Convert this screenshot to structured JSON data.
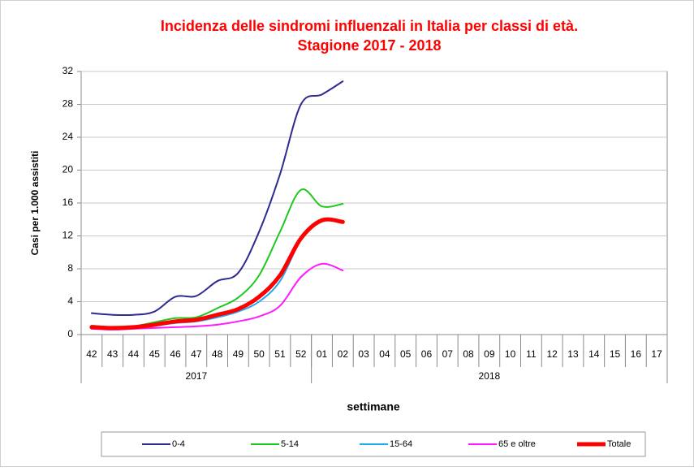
{
  "chart_data": {
    "type": "line",
    "title": "Incidenza delle sindromi influenzali in Italia per classi di età.",
    "subtitle": "Stagione 2017 - 2018",
    "y_label": "Casi per 1.000 assistiti",
    "x_label": "settimane",
    "categories": [
      "42",
      "43",
      "44",
      "45",
      "46",
      "47",
      "48",
      "49",
      "50",
      "51",
      "52",
      "01",
      "02",
      "03",
      "04",
      "05",
      "06",
      "07",
      "08",
      "09",
      "10",
      "11",
      "12",
      "13",
      "14",
      "15",
      "16",
      "17"
    ],
    "x_groups": [
      "2017",
      "2018"
    ],
    "ylim": [
      0,
      32
    ],
    "yticks": [
      0,
      4,
      8,
      12,
      16,
      20,
      24,
      28,
      32
    ],
    "grid": true,
    "legend": "bottom",
    "series": [
      {
        "name": "0-4",
        "color": "#2e2a8f",
        "width": 2,
        "values": [
          2.6,
          2.4,
          2.4,
          2.8,
          4.6,
          4.7,
          6.5,
          7.5,
          12.5,
          19.5,
          28.0,
          29.2,
          30.8,
          null,
          null,
          null,
          null,
          null,
          null,
          null,
          null,
          null,
          null,
          null,
          null,
          null,
          null,
          null
        ]
      },
      {
        "name": "5-14",
        "color": "#1ec81e",
        "width": 2,
        "values": [
          1.1,
          0.9,
          1.0,
          1.5,
          2.0,
          2.1,
          3.2,
          4.5,
          7.2,
          12.5,
          17.6,
          15.6,
          15.9,
          null,
          null,
          null,
          null,
          null,
          null,
          null,
          null,
          null,
          null,
          null,
          null,
          null,
          null,
          null
        ]
      },
      {
        "name": "15-64",
        "color": "#1eaaf0",
        "width": 2,
        "values": [
          0.8,
          0.7,
          0.8,
          1.1,
          1.4,
          1.6,
          2.1,
          2.8,
          4.0,
          6.5,
          11.5,
          13.8,
          13.7,
          null,
          null,
          null,
          null,
          null,
          null,
          null,
          null,
          null,
          null,
          null,
          null,
          null,
          null,
          null
        ]
      },
      {
        "name": "65 e oltre",
        "color": "#ff1aff",
        "width": 2,
        "values": [
          0.7,
          0.6,
          0.7,
          0.8,
          0.9,
          1.0,
          1.2,
          1.6,
          2.2,
          3.5,
          7.0,
          8.6,
          7.8,
          null,
          null,
          null,
          null,
          null,
          null,
          null,
          null,
          null,
          null,
          null,
          null,
          null,
          null,
          null
        ]
      },
      {
        "name": "Totale",
        "color": "#ff0000",
        "width": 5,
        "values": [
          0.9,
          0.8,
          0.9,
          1.2,
          1.6,
          1.8,
          2.4,
          3.1,
          4.6,
          7.2,
          11.7,
          13.9,
          13.7,
          null,
          null,
          null,
          null,
          null,
          null,
          null,
          null,
          null,
          null,
          null,
          null,
          null,
          null,
          null
        ]
      }
    ]
  }
}
